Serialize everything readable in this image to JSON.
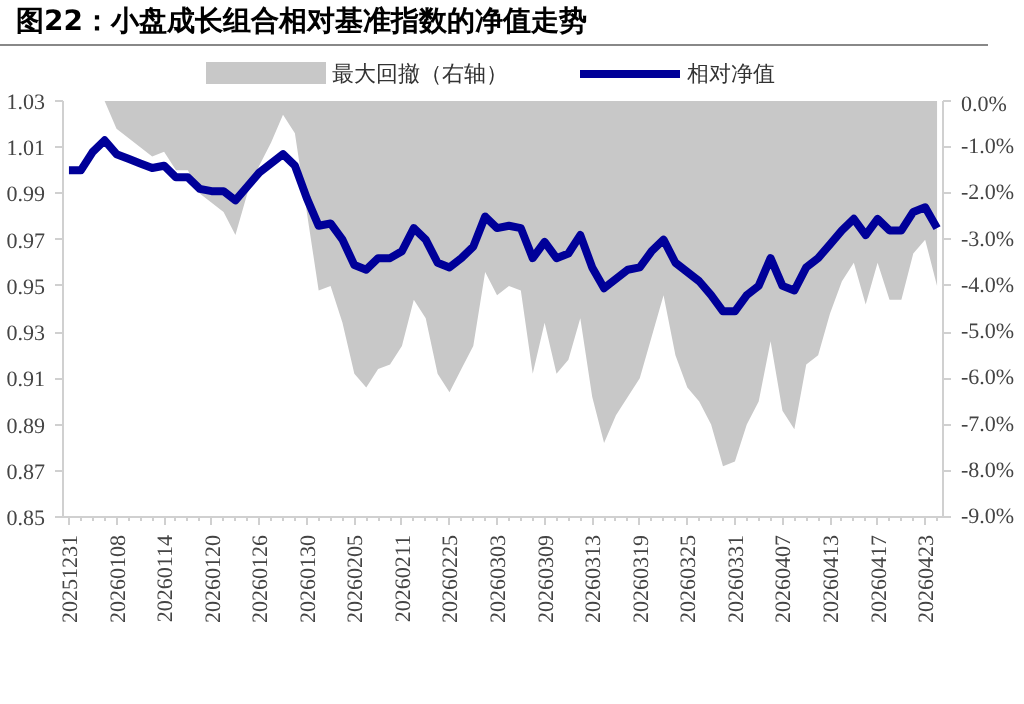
{
  "chart_data": {
    "type": "line",
    "title": "图22：小盘成长组合相对基准指数的净值走势",
    "categories": [
      "20251231",
      null,
      null,
      null,
      "20260108",
      null,
      null,
      null,
      "20260114",
      null,
      null,
      null,
      "20260120",
      null,
      null,
      null,
      "20260126",
      null,
      null,
      null,
      "20260130",
      null,
      null,
      null,
      "20260205",
      null,
      null,
      null,
      "20260211",
      null,
      null,
      null,
      "20260225",
      null,
      null,
      null,
      "20260303",
      null,
      null,
      null,
      "20260309",
      null,
      null,
      null,
      "20260313",
      null,
      null,
      null,
      "20260319",
      null,
      null,
      null,
      "20260325",
      null,
      null,
      null,
      "20260331",
      null,
      null,
      null,
      "20260407",
      null,
      null,
      null,
      "20260413",
      null,
      null,
      null,
      "20260417",
      null,
      null,
      null,
      "20260423",
      null
    ],
    "series": [
      {
        "name": "最大回撤（右轴）",
        "type": "area",
        "axis": "y2",
        "color": "#c8c8c8",
        "values": [
          0,
          0,
          0,
          0,
          -0.6,
          -0.8,
          -1.0,
          -1.2,
          -1.1,
          -1.5,
          -1.5,
          -2.0,
          -2.2,
          -2.4,
          -2.9,
          -2.0,
          -1.4,
          -0.9,
          -0.3,
          -0.7,
          -2.4,
          -4.1,
          -4.0,
          -4.8,
          -5.9,
          -6.2,
          -5.8,
          -5.7,
          -5.3,
          -4.3,
          -4.7,
          -5.9,
          -6.3,
          -5.8,
          -5.3,
          -3.7,
          -4.2,
          -4.0,
          -4.1,
          -5.9,
          -4.8,
          -5.9,
          -5.6,
          -4.7,
          -6.4,
          -7.4,
          -6.8,
          -6.4,
          -6.0,
          -5.1,
          -4.2,
          -5.5,
          -6.2,
          -6.5,
          -7.0,
          -7.9,
          -7.8,
          -7.0,
          -6.5,
          -5.2,
          -6.7,
          -7.1,
          -5.7,
          -5.5,
          -4.6,
          -3.9,
          -3.5,
          -4.4,
          -3.5,
          -4.3,
          -4.3,
          -3.3,
          -3.0,
          -4.0
        ]
      },
      {
        "name": "相对净值",
        "color": "#000099",
        "values": [
          1.0,
          1.0,
          1.008,
          1.013,
          1.007,
          1.005,
          1.003,
          1.001,
          1.002,
          0.997,
          0.997,
          0.992,
          0.991,
          0.991,
          0.987,
          0.993,
          0.999,
          1.003,
          1.007,
          1.002,
          0.988,
          0.976,
          0.977,
          0.97,
          0.959,
          0.957,
          0.962,
          0.962,
          0.965,
          0.975,
          0.97,
          0.96,
          0.958,
          0.962,
          0.967,
          0.98,
          0.975,
          0.976,
          0.975,
          0.962,
          0.969,
          0.962,
          0.964,
          0.972,
          0.958,
          0.949,
          0.953,
          0.957,
          0.958,
          0.965,
          0.97,
          0.96,
          0.956,
          0.952,
          0.946,
          0.939,
          0.939,
          0.946,
          0.95,
          0.962,
          0.95,
          0.948,
          0.958,
          0.962,
          0.968,
          0.974,
          0.979,
          0.972,
          0.979,
          0.974,
          0.974,
          0.982,
          0.984,
          0.975
        ]
      }
    ],
    "ylim": [
      0.85,
      1.03
    ],
    "yticks": [
      {
        "value": 0.85,
        "label": "0.85"
      },
      {
        "value": 0.87,
        "label": "0.87"
      },
      {
        "value": 0.89,
        "label": "0.89"
      },
      {
        "value": 0.91,
        "label": "0.91"
      },
      {
        "value": 0.93,
        "label": "0.93"
      },
      {
        "value": 0.95,
        "label": "0.95"
      },
      {
        "value": 0.97,
        "label": "0.97"
      },
      {
        "value": 0.99,
        "label": "0.99"
      },
      {
        "value": 1.01,
        "label": "1.01"
      },
      {
        "value": 1.03,
        "label": "1.03"
      }
    ],
    "y2lim": [
      -9,
      0
    ],
    "y2ticks": [
      {
        "value": 0,
        "label": "0.0%"
      },
      {
        "value": -1,
        "label": "-1.0%"
      },
      {
        "value": -2,
        "label": "-2.0%"
      },
      {
        "value": -3,
        "label": "-3.0%"
      },
      {
        "value": -4,
        "label": "-4.0%"
      },
      {
        "value": -5,
        "label": "-5.0%"
      },
      {
        "value": -6,
        "label": "-6.0%"
      },
      {
        "value": -7,
        "label": "-7.0%"
      },
      {
        "value": -8,
        "label": "-8.0%"
      },
      {
        "value": -9,
        "label": "-9.0%"
      }
    ],
    "legend": "top",
    "grid": false
  }
}
